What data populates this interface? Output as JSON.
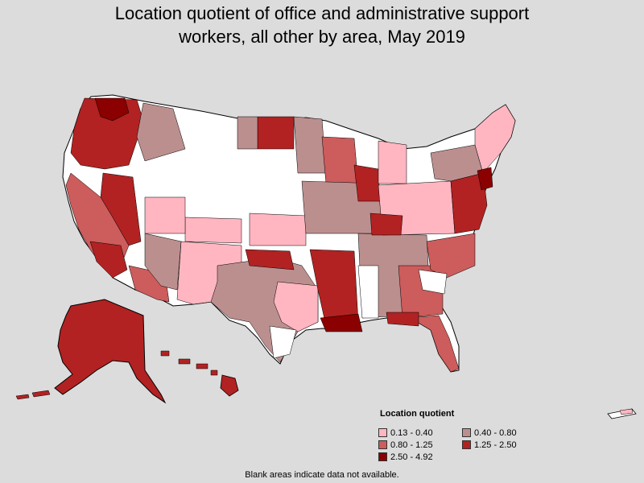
{
  "title": {
    "line1": "Location quotient of office and administrative support",
    "line2": "workers, all other by area, May 2019"
  },
  "legend": {
    "title": "Location quotient",
    "items": [
      {
        "label": "0.13 - 0.40",
        "color": "#ffb6c1"
      },
      {
        "label": "0.40 - 0.80",
        "color": "#bc8f8f"
      },
      {
        "label": "0.80 - 1.25",
        "color": "#cd5c5c"
      },
      {
        "label": "1.25 - 2.50",
        "color": "#b22222"
      },
      {
        "label": "2.50 - 4.92",
        "color": "#8b0000"
      }
    ]
  },
  "note": "Blank areas indicate data not available.",
  "colors": {
    "background": "#dcdcdc",
    "no_data": "#ffffff",
    "border": "#000000"
  }
}
